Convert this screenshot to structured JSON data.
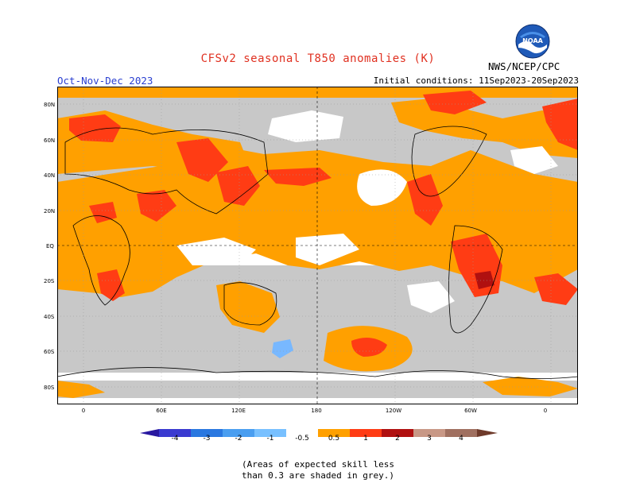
{
  "header": {
    "title": "CFSv2 seasonal T850 anomalies (K)",
    "period": "Oct-Nov-Dec 2023",
    "initial_conditions": "Initial conditions: 11Sep2023-20Sep2023",
    "agency": "NWS/NCEP/CPC",
    "logo_text": "NOAA"
  },
  "map": {
    "lat_labels": [
      "80N",
      "60N",
      "40N",
      "20N",
      "EQ",
      "20S",
      "40S",
      "60S",
      "80S"
    ],
    "lon_labels": [
      "0",
      "60E",
      "120E",
      "180",
      "120W",
      "60W",
      "0"
    ],
    "colors": {
      "skill_mask": "#c8c8c8",
      "ocean": "#ffffff",
      "c_0_5_to_1": "#ffa000",
      "c_1_to_2": "#ff3c14",
      "c_2_to_3": "#c80014",
      "c_3_to_4": "#c89886",
      "neg_0_5_to_1": "#78b8ff"
    }
  },
  "colorbar": {
    "labels": [
      "-4",
      "-3",
      "-2",
      "-1",
      "-0.5",
      "0.5",
      "1",
      "2",
      "3",
      "4"
    ],
    "colors": [
      "#2818a0",
      "#3a3ad0",
      "#2a78e0",
      "#4a9ef0",
      "#78c0ff",
      "#ffffff",
      "#ffa000",
      "#ff3c14",
      "#ff1800",
      "#b01010",
      "#c89886",
      "#6e3a2a"
    ]
  },
  "note": {
    "line1": "(Areas of expected skill less",
    "line2": "than 0.3 are shaded in grey.)"
  }
}
